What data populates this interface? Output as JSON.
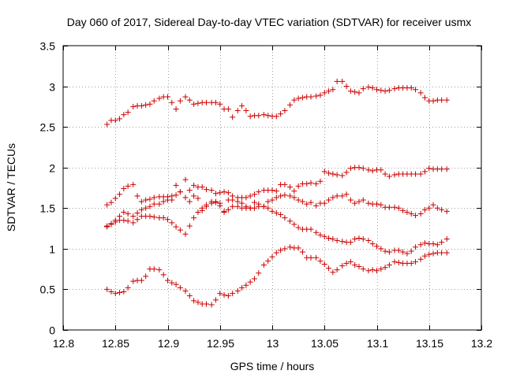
{
  "chart_data": {
    "type": "scatter",
    "title": "Day 060 of 2017, Sidereal Day-to-day VTEC variation (SDTVAR) for receiver usmx",
    "xlabel": "GPS time / hours",
    "ylabel": "SDTVAR / TECUs",
    "xlim": [
      12.8,
      13.2
    ],
    "ylim": [
      0,
      3.5
    ],
    "xticks": [
      "12.8",
      "12.85",
      "12.9",
      "12.95",
      "13",
      "13.05",
      "13.1",
      "13.15",
      "13.2"
    ],
    "yticks": [
      "0",
      "0.5",
      "1",
      "1.5",
      "2",
      "2.5",
      "3",
      "3.5"
    ],
    "grid": true,
    "color": "#cc0000",
    "marker": "plus",
    "series": [
      {
        "name": "series-1",
        "x": [
          12.842,
          12.846,
          12.85,
          12.854,
          12.858,
          12.862,
          12.867,
          12.871,
          12.875,
          12.879,
          12.883,
          12.887,
          12.892,
          12.896,
          12.9,
          12.904,
          12.908,
          12.912,
          12.917,
          12.921,
          12.925,
          12.929,
          12.933,
          12.937,
          12.942,
          12.946,
          12.95,
          12.954,
          12.958,
          12.962,
          12.967,
          12.971,
          12.975,
          12.979,
          12.983,
          12.987,
          12.992,
          12.996,
          13.0,
          13.004,
          13.008,
          13.012,
          13.017,
          13.021,
          13.025,
          13.029,
          13.033,
          13.037,
          13.042,
          13.046,
          13.05,
          13.054,
          13.058,
          13.062,
          13.067,
          13.071,
          13.075,
          13.079,
          13.083,
          13.087,
          13.092,
          13.096,
          13.1,
          13.104,
          13.108,
          13.112,
          13.117,
          13.121,
          13.125,
          13.129,
          13.133,
          13.137,
          13.142,
          13.146,
          13.15,
          13.154,
          13.158,
          13.162,
          13.167
        ],
        "y": [
          2.53,
          2.58,
          2.58,
          2.6,
          2.65,
          2.68,
          2.75,
          2.76,
          2.76,
          2.77,
          2.78,
          2.82,
          2.85,
          2.87,
          2.87,
          2.8,
          2.72,
          2.82,
          2.87,
          2.83,
          2.78,
          2.79,
          2.8,
          2.8,
          2.8,
          2.8,
          2.78,
          2.72,
          2.72,
          2.62,
          2.7,
          2.76,
          2.7,
          2.63,
          2.64,
          2.64,
          2.65,
          2.64,
          2.63,
          2.63,
          2.66,
          2.7,
          2.77,
          2.83,
          2.85,
          2.86,
          2.87,
          2.87,
          2.88,
          2.89,
          2.92,
          2.94,
          2.96,
          3.06,
          3.06,
          3.0,
          2.94,
          2.93,
          2.92,
          2.97,
          2.99,
          2.98,
          2.96,
          2.95,
          2.94,
          2.95,
          2.97,
          2.98,
          2.98,
          2.98,
          2.98,
          2.96,
          2.92,
          2.86,
          2.82,
          2.82,
          2.83,
          2.83,
          2.83
        ]
      },
      {
        "name": "series-2",
        "x": [
          12.842,
          12.846,
          12.85,
          12.854,
          12.858,
          12.862,
          12.867,
          12.871,
          12.875,
          12.879,
          12.883,
          12.887,
          12.892,
          12.896,
          12.9,
          12.904,
          12.908,
          12.912,
          12.917,
          12.921,
          12.925,
          12.929,
          12.933,
          12.937,
          12.942,
          12.946,
          12.95,
          12.954,
          12.958,
          12.962,
          12.967,
          12.971,
          12.975,
          12.979,
          12.983,
          12.987,
          12.992,
          12.996,
          13.0,
          13.004,
          13.008,
          13.012,
          13.017,
          13.021,
          13.025,
          13.029,
          13.033,
          13.037,
          13.042,
          13.046,
          13.05,
          13.054,
          13.058,
          13.062,
          13.067,
          13.071,
          13.075,
          13.079,
          13.083,
          13.087,
          13.092,
          13.096,
          13.1,
          13.104,
          13.108,
          13.112,
          13.117,
          13.121,
          13.125,
          13.129,
          13.133,
          13.137,
          13.142,
          13.146,
          13.15,
          13.154,
          13.158,
          13.162,
          13.167
        ],
        "y": [
          1.54,
          1.57,
          1.62,
          1.67,
          1.74,
          1.77,
          1.79,
          1.65,
          1.58,
          1.6,
          1.61,
          1.63,
          1.64,
          1.64,
          1.64,
          1.65,
          1.78,
          1.7,
          1.85,
          1.72,
          1.78,
          1.76,
          1.76,
          1.73,
          1.72,
          1.68,
          1.69,
          1.7,
          1.69,
          1.65,
          1.63,
          1.63,
          1.63,
          1.65,
          1.67,
          1.7,
          1.72,
          1.72,
          1.72,
          1.71,
          1.79,
          1.79,
          1.76,
          1.71,
          1.77,
          1.8,
          1.8,
          1.81,
          1.8,
          1.83,
          1.95,
          1.93,
          1.92,
          1.91,
          1.9,
          1.94,
          1.99,
          2.0,
          2.0,
          1.99,
          1.97,
          1.96,
          1.97,
          1.97,
          1.92,
          1.89,
          1.91,
          1.92,
          1.92,
          1.92,
          1.92,
          1.92,
          1.92,
          1.95,
          1.99,
          1.98,
          1.98,
          1.98,
          1.98
        ]
      },
      {
        "name": "series-3",
        "x": [
          12.842,
          12.846,
          12.85,
          12.854,
          12.858,
          12.862,
          12.867,
          12.871,
          12.875,
          12.879,
          12.883,
          12.887,
          12.892,
          12.896,
          12.9,
          12.904,
          12.908,
          12.912,
          12.917,
          12.921,
          12.925,
          12.929,
          12.933,
          12.937,
          12.942,
          12.946,
          12.95,
          12.954,
          12.958,
          12.962,
          12.967,
          12.971,
          12.975,
          12.979,
          12.983,
          12.987,
          12.992,
          12.996,
          13.0,
          13.004,
          13.008,
          13.012,
          13.017,
          13.021,
          13.025,
          13.029,
          13.033,
          13.037,
          13.042,
          13.046,
          13.05,
          13.054,
          13.058,
          13.062,
          13.067,
          13.071,
          13.075,
          13.079,
          13.083,
          13.087,
          13.092,
          13.096,
          13.1,
          13.104,
          13.108,
          13.112,
          13.117,
          13.121,
          13.125,
          13.129,
          13.133,
          13.137,
          13.142,
          13.146,
          13.15,
          13.154,
          13.158,
          13.162,
          13.167
        ],
        "y": [
          1.27,
          1.31,
          1.35,
          1.4,
          1.45,
          1.43,
          1.4,
          1.44,
          1.48,
          1.5,
          1.52,
          1.55,
          1.55,
          1.58,
          1.6,
          1.6,
          1.66,
          1.7,
          1.63,
          1.58,
          1.65,
          1.62,
          1.5,
          1.54,
          1.56,
          1.58,
          1.56,
          1.46,
          1.6,
          1.6,
          1.58,
          1.56,
          1.52,
          1.5,
          1.57,
          1.55,
          1.52,
          1.58,
          1.6,
          1.63,
          1.65,
          1.66,
          1.65,
          1.63,
          1.6,
          1.58,
          1.55,
          1.57,
          1.53,
          1.56,
          1.56,
          1.6,
          1.63,
          1.65,
          1.65,
          1.67,
          1.6,
          1.56,
          1.58,
          1.6,
          1.56,
          1.55,
          1.55,
          1.54,
          1.51,
          1.51,
          1.51,
          1.5,
          1.47,
          1.45,
          1.43,
          1.41,
          1.43,
          1.48,
          1.5,
          1.54,
          1.5,
          1.48,
          1.46
        ]
      },
      {
        "name": "series-4",
        "x": [
          12.842,
          12.846,
          12.85,
          12.854,
          12.858,
          12.862,
          12.867,
          12.871,
          12.875,
          12.879,
          12.883,
          12.887,
          12.892,
          12.896,
          12.9,
          12.904,
          12.908,
          12.912,
          12.917,
          12.921,
          12.925,
          12.929,
          12.933,
          12.937,
          12.942,
          12.946,
          12.95,
          12.954,
          12.958,
          12.962,
          12.967,
          12.971,
          12.975,
          12.979,
          12.983,
          12.987,
          12.992,
          12.996,
          13.0,
          13.004,
          13.008,
          13.012,
          13.017,
          13.021,
          13.025,
          13.029,
          13.033,
          13.037,
          13.042,
          13.046,
          13.05,
          13.054,
          13.058,
          13.062,
          13.067,
          13.071,
          13.075,
          13.079,
          13.083,
          13.087,
          13.092,
          13.096,
          13.1,
          13.104,
          13.108,
          13.112,
          13.117,
          13.121,
          13.125,
          13.129,
          13.133,
          13.137,
          13.142,
          13.146,
          13.15,
          13.154,
          13.158,
          13.162,
          13.167
        ],
        "y": [
          1.28,
          1.3,
          1.33,
          1.35,
          1.35,
          1.34,
          1.32,
          1.36,
          1.4,
          1.4,
          1.4,
          1.39,
          1.38,
          1.38,
          1.36,
          1.32,
          1.27,
          1.23,
          1.18,
          1.28,
          1.38,
          1.45,
          1.47,
          1.52,
          1.58,
          1.57,
          1.53,
          1.45,
          1.48,
          1.52,
          1.52,
          1.5,
          1.5,
          1.5,
          1.5,
          1.52,
          1.52,
          1.5,
          1.46,
          1.44,
          1.42,
          1.38,
          1.34,
          1.3,
          1.26,
          1.24,
          1.24,
          1.24,
          1.2,
          1.17,
          1.15,
          1.13,
          1.12,
          1.1,
          1.09,
          1.08,
          1.08,
          1.12,
          1.13,
          1.12,
          1.1,
          1.06,
          1.03,
          1.0,
          0.97,
          0.96,
          0.98,
          0.98,
          0.96,
          0.94,
          0.97,
          1.02,
          1.05,
          1.07,
          1.06,
          1.06,
          1.05,
          1.08,
          1.12
        ]
      },
      {
        "name": "series-5",
        "x": [
          12.842,
          12.846,
          12.85,
          12.854,
          12.858,
          12.862,
          12.867,
          12.871,
          12.875,
          12.879,
          12.883,
          12.887,
          12.892,
          12.896,
          12.9,
          12.904,
          12.908,
          12.912,
          12.917,
          12.921,
          12.925,
          12.929,
          12.933,
          12.937,
          12.942,
          12.946,
          12.95,
          12.954,
          12.958,
          12.962,
          12.967,
          12.971,
          12.975,
          12.979,
          12.983,
          12.987,
          12.992,
          12.996,
          13.0,
          13.004,
          13.008,
          13.012,
          13.017,
          13.021,
          13.025,
          13.029,
          13.033,
          13.037,
          13.042,
          13.046,
          13.05,
          13.054,
          13.058,
          13.062,
          13.067,
          13.071,
          13.075,
          13.079,
          13.083,
          13.087,
          13.092,
          13.096,
          13.1,
          13.104,
          13.108,
          13.112,
          13.117,
          13.121,
          13.125,
          13.129,
          13.133,
          13.137,
          13.142,
          13.146,
          13.15,
          13.154,
          13.158,
          13.162,
          13.167
        ],
        "y": [
          0.5,
          0.47,
          0.45,
          0.46,
          0.47,
          0.52,
          0.6,
          0.61,
          0.61,
          0.66,
          0.75,
          0.75,
          0.74,
          0.68,
          0.61,
          0.58,
          0.56,
          0.52,
          0.48,
          0.42,
          0.36,
          0.34,
          0.32,
          0.32,
          0.31,
          0.37,
          0.45,
          0.43,
          0.42,
          0.45,
          0.48,
          0.52,
          0.55,
          0.59,
          0.63,
          0.7,
          0.8,
          0.85,
          0.9,
          0.95,
          0.98,
          1.0,
          1.02,
          1.01,
          1.01,
          0.96,
          0.89,
          0.89,
          0.89,
          0.85,
          0.81,
          0.76,
          0.71,
          0.74,
          0.79,
          0.82,
          0.84,
          0.8,
          0.78,
          0.75,
          0.73,
          0.74,
          0.73,
          0.75,
          0.77,
          0.8,
          0.84,
          0.83,
          0.82,
          0.82,
          0.82,
          0.84,
          0.87,
          0.91,
          0.93,
          0.94,
          0.95,
          0.95,
          0.95
        ]
      }
    ]
  }
}
